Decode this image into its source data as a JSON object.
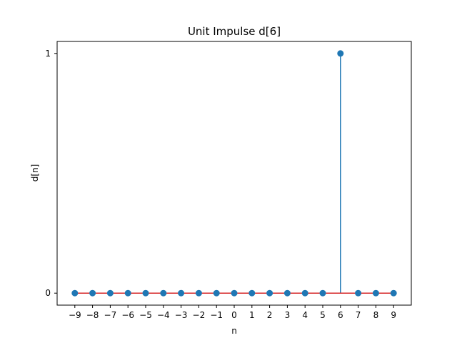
{
  "chart_data": {
    "type": "stem",
    "title": "Unit Impulse d[6]",
    "xlabel": "n",
    "ylabel": "d[n]",
    "x": [
      -9,
      -8,
      -7,
      -6,
      -5,
      -4,
      -3,
      -2,
      -1,
      0,
      1,
      2,
      3,
      4,
      5,
      6,
      7,
      8,
      9
    ],
    "y": [
      0,
      0,
      0,
      0,
      0,
      0,
      0,
      0,
      0,
      0,
      0,
      0,
      0,
      0,
      0,
      1,
      0,
      0,
      0
    ],
    "x_ticks": [
      "−9",
      "−8",
      "−7",
      "−6",
      "−5",
      "−4",
      "−3",
      "−2",
      "−1",
      "0",
      "1",
      "2",
      "3",
      "4",
      "5",
      "6",
      "7",
      "8",
      "9"
    ],
    "y_ticks": [
      {
        "value": 0,
        "label": "0"
      },
      {
        "value": 1,
        "label": "1"
      }
    ],
    "xlim": [
      -10,
      10
    ],
    "ylim": [
      -0.05,
      1.05
    ],
    "grid": false,
    "colors": {
      "stem": "#1f77b4",
      "marker": "#1f77b4",
      "baseline": "#d62728",
      "axes": "#000000"
    }
  }
}
